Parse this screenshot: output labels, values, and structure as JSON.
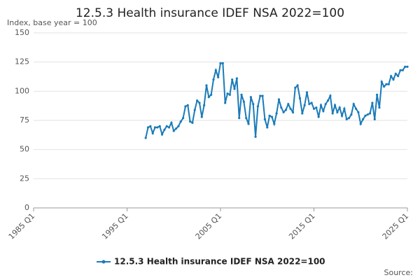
{
  "chart_data": {
    "type": "line",
    "title": "12.5.3 Health insurance IDEF NSA 2022=100",
    "subtitle": "Index, base year = 100",
    "source": "Source:",
    "x": [
      "1997 Q1",
      "1997 Q2",
      "1997 Q3",
      "1997 Q4",
      "1998 Q1",
      "1998 Q2",
      "1998 Q3",
      "1998 Q4",
      "1999 Q1",
      "1999 Q2",
      "1999 Q3",
      "1999 Q4",
      "2000 Q1",
      "2000 Q2",
      "2000 Q3",
      "2000 Q4",
      "2001 Q1",
      "2001 Q2",
      "2001 Q3",
      "2001 Q4",
      "2002 Q1",
      "2002 Q2",
      "2002 Q3",
      "2002 Q4",
      "2003 Q1",
      "2003 Q2",
      "2003 Q3",
      "2003 Q4",
      "2004 Q1",
      "2004 Q2",
      "2004 Q3",
      "2004 Q4",
      "2005 Q1",
      "2005 Q2",
      "2005 Q3",
      "2005 Q4",
      "2006 Q1",
      "2006 Q2",
      "2006 Q3",
      "2006 Q4",
      "2007 Q1",
      "2007 Q2",
      "2007 Q3",
      "2007 Q4",
      "2008 Q1",
      "2008 Q2",
      "2008 Q3",
      "2008 Q4",
      "2009 Q1",
      "2009 Q2",
      "2009 Q3",
      "2009 Q4",
      "2010 Q1",
      "2010 Q2",
      "2010 Q3",
      "2010 Q4",
      "2011 Q1",
      "2011 Q2",
      "2011 Q3",
      "2011 Q4",
      "2012 Q1",
      "2012 Q2",
      "2012 Q3",
      "2012 Q4",
      "2013 Q1",
      "2013 Q2",
      "2013 Q3",
      "2013 Q4",
      "2014 Q1",
      "2014 Q2",
      "2014 Q3",
      "2014 Q4",
      "2015 Q1",
      "2015 Q2",
      "2015 Q3",
      "2015 Q4",
      "2016 Q1",
      "2016 Q2",
      "2016 Q3",
      "2016 Q4",
      "2017 Q1",
      "2017 Q2",
      "2017 Q3",
      "2017 Q4",
      "2018 Q1",
      "2018 Q2",
      "2018 Q3",
      "2018 Q4",
      "2019 Q1",
      "2019 Q2",
      "2019 Q3",
      "2019 Q4",
      "2020 Q1",
      "2020 Q2",
      "2020 Q3",
      "2020 Q4",
      "2021 Q1",
      "2021 Q2",
      "2021 Q3",
      "2021 Q4",
      "2022 Q1",
      "2022 Q2",
      "2022 Q3",
      "2022 Q4",
      "2023 Q1",
      "2023 Q2",
      "2023 Q3",
      "2023 Q4",
      "2024 Q1",
      "2024 Q2",
      "2024 Q3",
      "2024 Q4",
      "2025 Q1"
    ],
    "series": [
      {
        "name": "12.5.3 Health insurance IDEF NSA 2022=100",
        "color": "#1a7bb9",
        "values": [
          60,
          69,
          70,
          64,
          69,
          69,
          70,
          63,
          67,
          70,
          69,
          73,
          66,
          68,
          70,
          74,
          77,
          87,
          88,
          74,
          73,
          84,
          92,
          90,
          78,
          88,
          105,
          95,
          97,
          110,
          118,
          112,
          124,
          124,
          90,
          98,
          97,
          110,
          102,
          111,
          77,
          97,
          91,
          77,
          72,
          95,
          89,
          61,
          87,
          96,
          96,
          76,
          69,
          79,
          78,
          72,
          81,
          93,
          86,
          82,
          84,
          89,
          85,
          82,
          103,
          105,
          94,
          81,
          88,
          99,
          89,
          90,
          85,
          86,
          78,
          88,
          83,
          89,
          92,
          96,
          81,
          88,
          82,
          86,
          79,
          85,
          76,
          77,
          80,
          89,
          85,
          82,
          72,
          76,
          79,
          80,
          81,
          90,
          76,
          97,
          86,
          108,
          104,
          106,
          106,
          113,
          110,
          115,
          113,
          118,
          118,
          121,
          121
        ]
      }
    ],
    "xlim": [
      "1985 Q1",
      "2025 Q1"
    ],
    "xticks": [
      "1985 Q1",
      "1995 Q1",
      "2005 Q1",
      "2015 Q1",
      "2025 Q1"
    ],
    "ylim": [
      0,
      150
    ],
    "yticks": [
      0,
      25,
      50,
      75,
      100,
      125,
      150
    ],
    "grid": true,
    "legend": "bottom"
  }
}
